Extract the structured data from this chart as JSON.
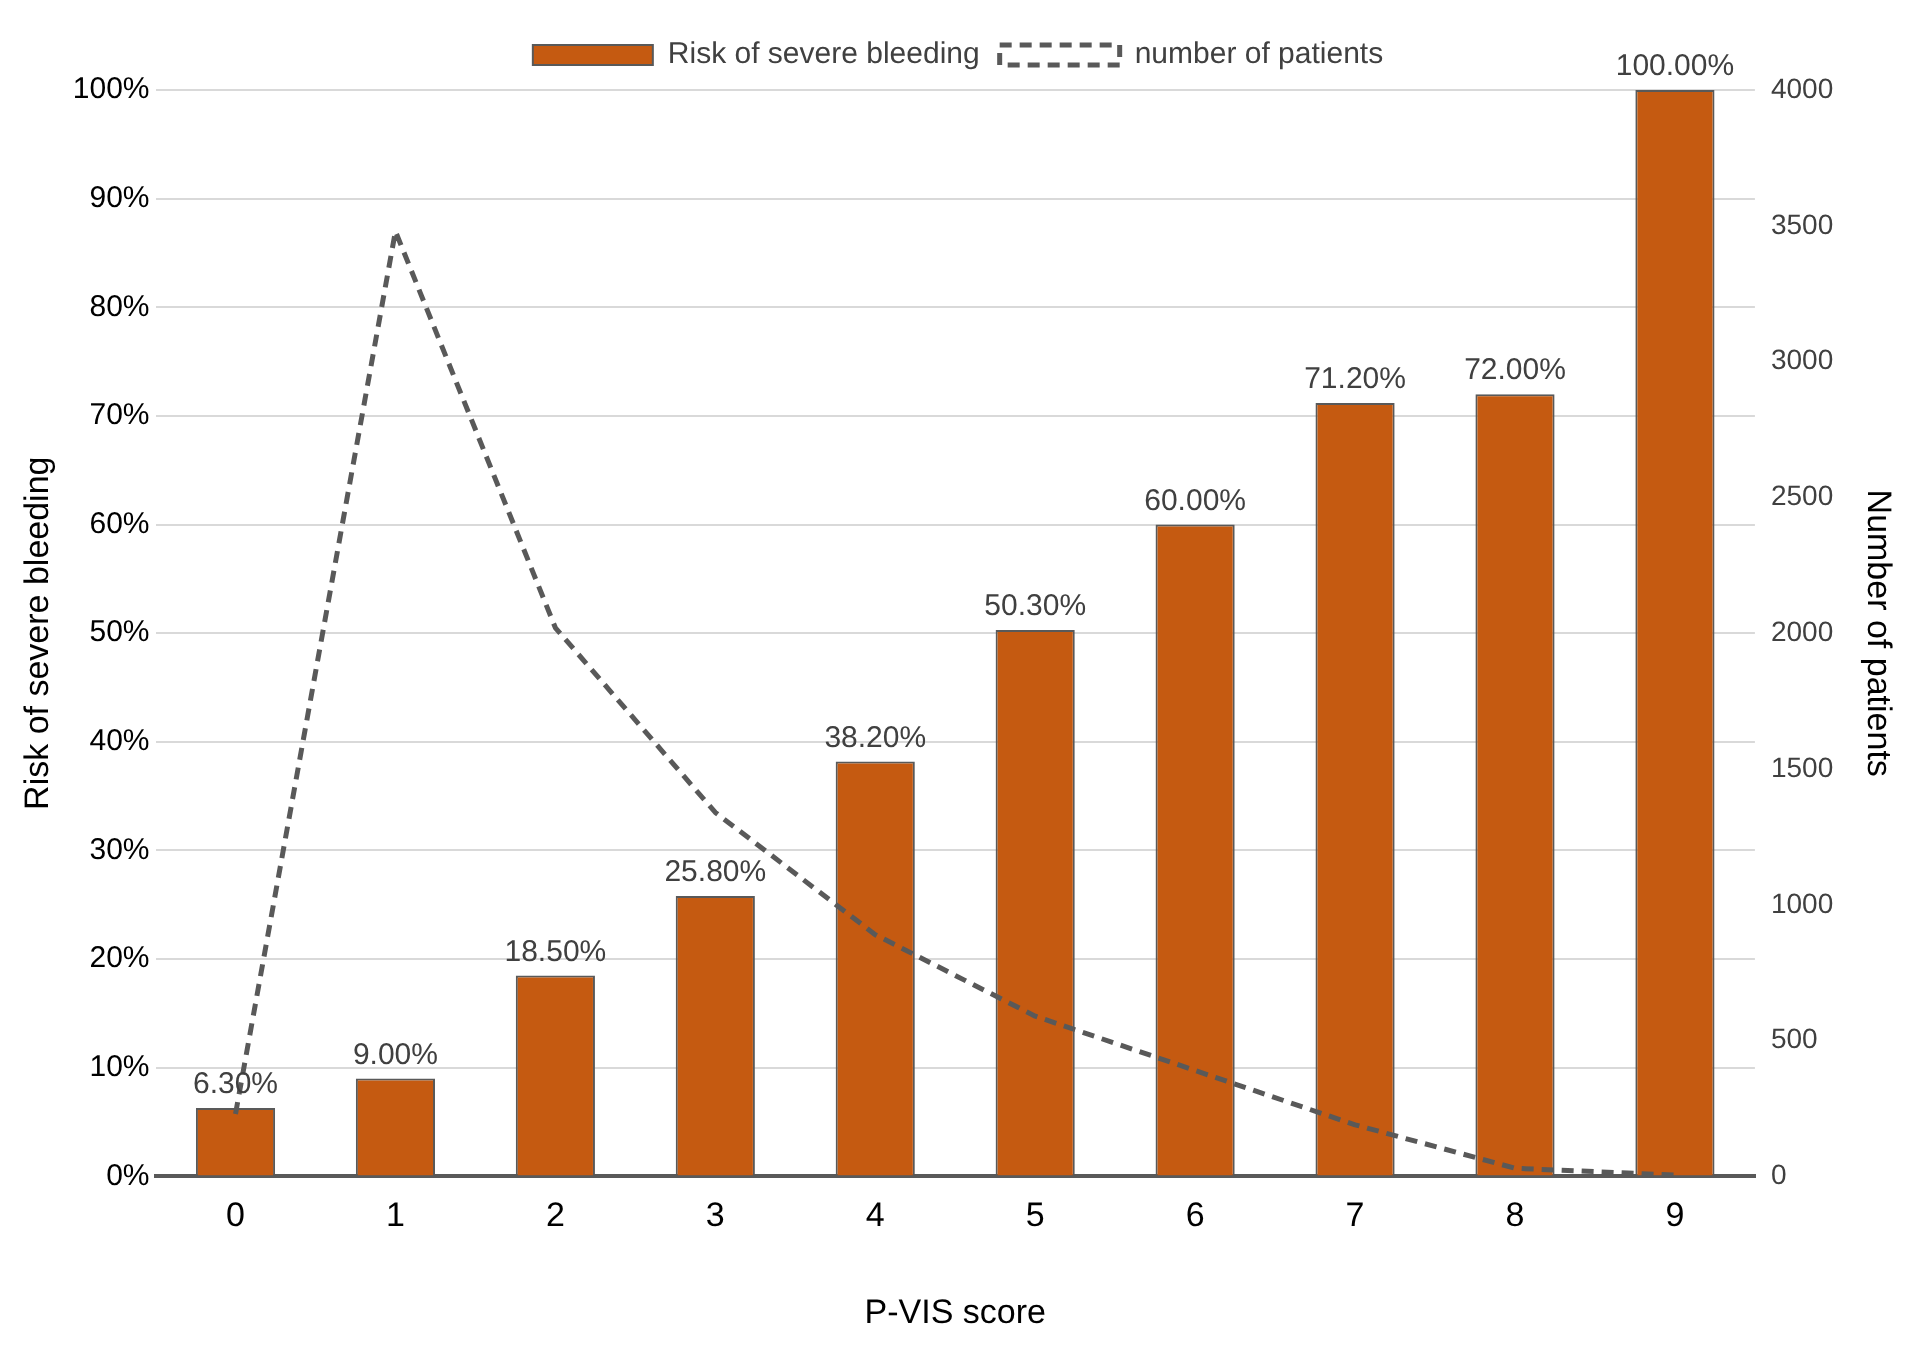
{
  "chart_data": {
    "type": "bar",
    "xlabel": "P-VIS score",
    "ylabel": "Risk of severe bleeding",
    "y2label": "Number of patients",
    "categories": [
      "0",
      "1",
      "2",
      "3",
      "4",
      "5",
      "6",
      "7",
      "8",
      "9"
    ],
    "series": [
      {
        "name": "Risk of severe bleeding",
        "color": "#c55a11",
        "values": [
          6.3,
          9,
          18.5,
          25.8,
          38.2,
          50.3,
          60,
          71.2,
          72,
          100
        ],
        "value_labels": [
          "6.30%",
          "9.00%",
          "18.50%",
          "25.80%",
          "38.20%",
          "50.30%",
          "60.00%",
          "71.20%",
          "72.00%",
          "100.00%"
        ]
      },
      {
        "name": "number of patients",
        "type": "line",
        "axis": "y2",
        "color": "#595959",
        "line_style": "dashed",
        "marker": "none",
        "values": [
          230,
          3480,
          2020,
          1340,
          890,
          590,
          390,
          190,
          30,
          5
        ]
      }
    ],
    "ylim": [
      0,
      100
    ],
    "yticks": [
      {
        "value": 0,
        "label": "0%"
      },
      {
        "value": 10,
        "label": "10%"
      },
      {
        "value": 20,
        "label": "20%"
      },
      {
        "value": 30,
        "label": "30%"
      },
      {
        "value": 40,
        "label": "40%"
      },
      {
        "value": 50,
        "label": "50%"
      },
      {
        "value": 60,
        "label": "60%"
      },
      {
        "value": 70,
        "label": "70%"
      },
      {
        "value": 80,
        "label": "80%"
      },
      {
        "value": 90,
        "label": "90%"
      },
      {
        "value": 100,
        "label": "100%"
      }
    ],
    "y2lim": [
      0,
      4000
    ],
    "y2ticks": [
      0,
      500,
      1000,
      1500,
      2000,
      2500,
      3000,
      3500,
      4000
    ],
    "grid": "y",
    "legend": "top"
  }
}
